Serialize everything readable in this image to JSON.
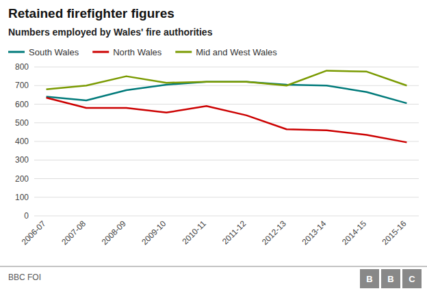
{
  "chart_data": {
    "type": "line",
    "title": "Retained firefighter figures",
    "subtitle": "Numbers employed by Wales' fire authorities",
    "source": "BBC FOI",
    "annotations": [
      "B",
      "B",
      "C"
    ],
    "categories": [
      "2006-07",
      "2007-08",
      "2008-09",
      "2009-10",
      "2010-11",
      "2011-12",
      "2012-13",
      "2013-14",
      "2014-15",
      "2015-16"
    ],
    "series": [
      {
        "name": "South Wales",
        "color": "#007a7a",
        "values": [
          640,
          620,
          675,
          705,
          720,
          720,
          705,
          700,
          665,
          605
        ]
      },
      {
        "name": "North Wales",
        "color": "#cc0000",
        "values": [
          635,
          580,
          580,
          555,
          590,
          540,
          465,
          460,
          435,
          395
        ]
      },
      {
        "name": "Mid and West Wales",
        "color": "#7a9a01",
        "values": [
          680,
          700,
          750,
          715,
          720,
          720,
          700,
          780,
          775,
          700
        ]
      }
    ],
    "ylim": [
      0,
      800
    ],
    "yticks": [
      0,
      100,
      200,
      300,
      400,
      500,
      600,
      700,
      800
    ],
    "grid": true,
    "legend": "top-left"
  }
}
